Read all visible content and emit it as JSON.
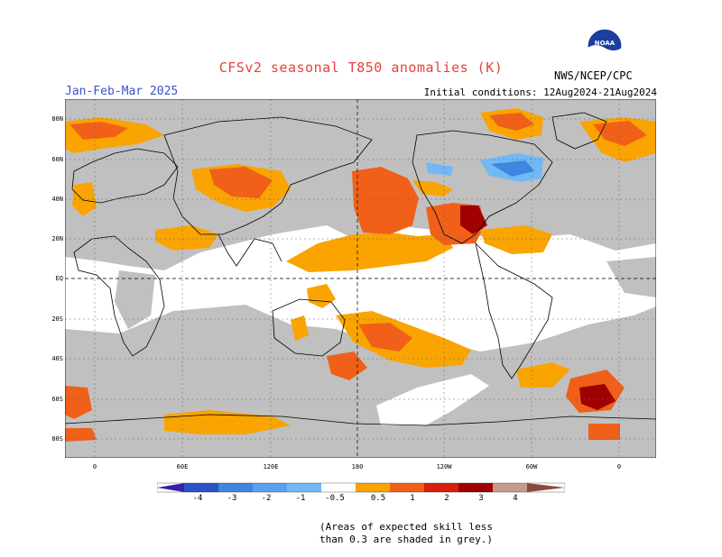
{
  "header": {
    "title": "CFSv2 seasonal T850 anomalies (K)",
    "season": "Jan-Feb-Mar 2025",
    "initial_conditions": "Initial conditions: 12Aug2024-21Aug2024",
    "agency": "NWS/NCEP/CPC",
    "logo_text": "NOAA"
  },
  "axes": {
    "lat_labels": [
      "80N",
      "60N",
      "40N",
      "20N",
      "EQ",
      "20S",
      "40S",
      "60S",
      "80S"
    ],
    "lon_labels": [
      "0",
      "60E",
      "120E",
      "180",
      "120W",
      "60W",
      "0"
    ]
  },
  "legend": {
    "labels": [
      "-4",
      "-3",
      "-2",
      "-1",
      "-0.5",
      "0.5",
      "1",
      "2",
      "3",
      "4"
    ],
    "colors": [
      "#3a1fa8",
      "#2d52c8",
      "#3e86e0",
      "#72b8f5",
      "#ffffff",
      "#f9a400",
      "#f06018",
      "#d8200e",
      "#a00000",
      "#c89a8c",
      "#8a4a3a"
    ],
    "note_line1": "(Areas of expected skill less",
    "note_line2": "than 0.3 are shaded in grey.)"
  },
  "colors": {
    "grey_low_skill": "#c0c0c0",
    "orange": "#f9a400",
    "red_orange": "#f06018",
    "red": "#d8200e",
    "dark_red": "#a00000",
    "light_blue": "#72b8f5",
    "blue": "#3e86e0"
  }
}
